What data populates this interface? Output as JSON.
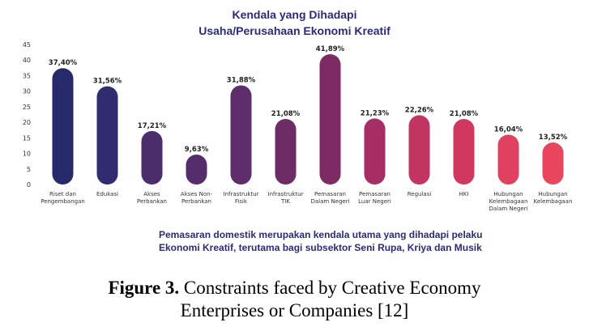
{
  "chart_data": {
    "type": "bar",
    "title_lines": [
      "Kendala yang Dihadapi",
      "Usaha/Perusahaan Ekonomi Kreatif"
    ],
    "xlabel": "",
    "ylabel": "",
    "ylim": [
      0,
      45
    ],
    "yticks": [
      0,
      5,
      10,
      15,
      20,
      25,
      30,
      35,
      40,
      45
    ],
    "grid": false,
    "legend": "none",
    "categories": [
      [
        "Riset dan",
        "Pengembangan"
      ],
      [
        "Edukasi"
      ],
      [
        "Akses",
        "Perbankan"
      ],
      [
        "Akses Non-",
        "Perbankan"
      ],
      [
        "Infrastruktur",
        "Fisik"
      ],
      [
        "Infrastruktur",
        "TIK"
      ],
      [
        "Pemasaran",
        "Dalam Negeri"
      ],
      [
        "Pemasaran",
        "Luar Negeri"
      ],
      [
        "Regulasi"
      ],
      [
        "HKI"
      ],
      [
        "Hubungan",
        "Kelembagaan",
        "Dalam Negeri"
      ],
      [
        "Hubungan",
        "Kelembagaan"
      ]
    ],
    "values": [
      37.4,
      31.56,
      17.21,
      9.63,
      31.88,
      21.08,
      41.89,
      21.23,
      22.26,
      21.08,
      16.04,
      13.52
    ],
    "value_labels": [
      "37,40%",
      "31,56%",
      "17,21%",
      "9,63%",
      "31,88%",
      "21,08%",
      "41,89%",
      "21,23%",
      "22,26%",
      "21,08%",
      "16,04%",
      "13,52%"
    ],
    "bar_colors": [
      "#262a6b",
      "#2f2c70",
      "#4b2d6c",
      "#552d6a",
      "#5e2d6b",
      "#6e2c67",
      "#7d2a65",
      "#a72e64",
      "#c23563",
      "#d0385f",
      "#e0415f",
      "#e8455f"
    ],
    "note_lines": [
      "Pemasaran domestik merupakan kendala utama yang dihadapi pelaku",
      "Ekonomi Kreatif, terutama bagi subsektor Seni Rupa, Kriya dan Musik"
    ]
  },
  "caption": {
    "figure_label": "Figure 3.",
    "line1_rest": " Constraints faced by Creative Economy",
    "line2": "Enterprises or Companies [12]"
  }
}
